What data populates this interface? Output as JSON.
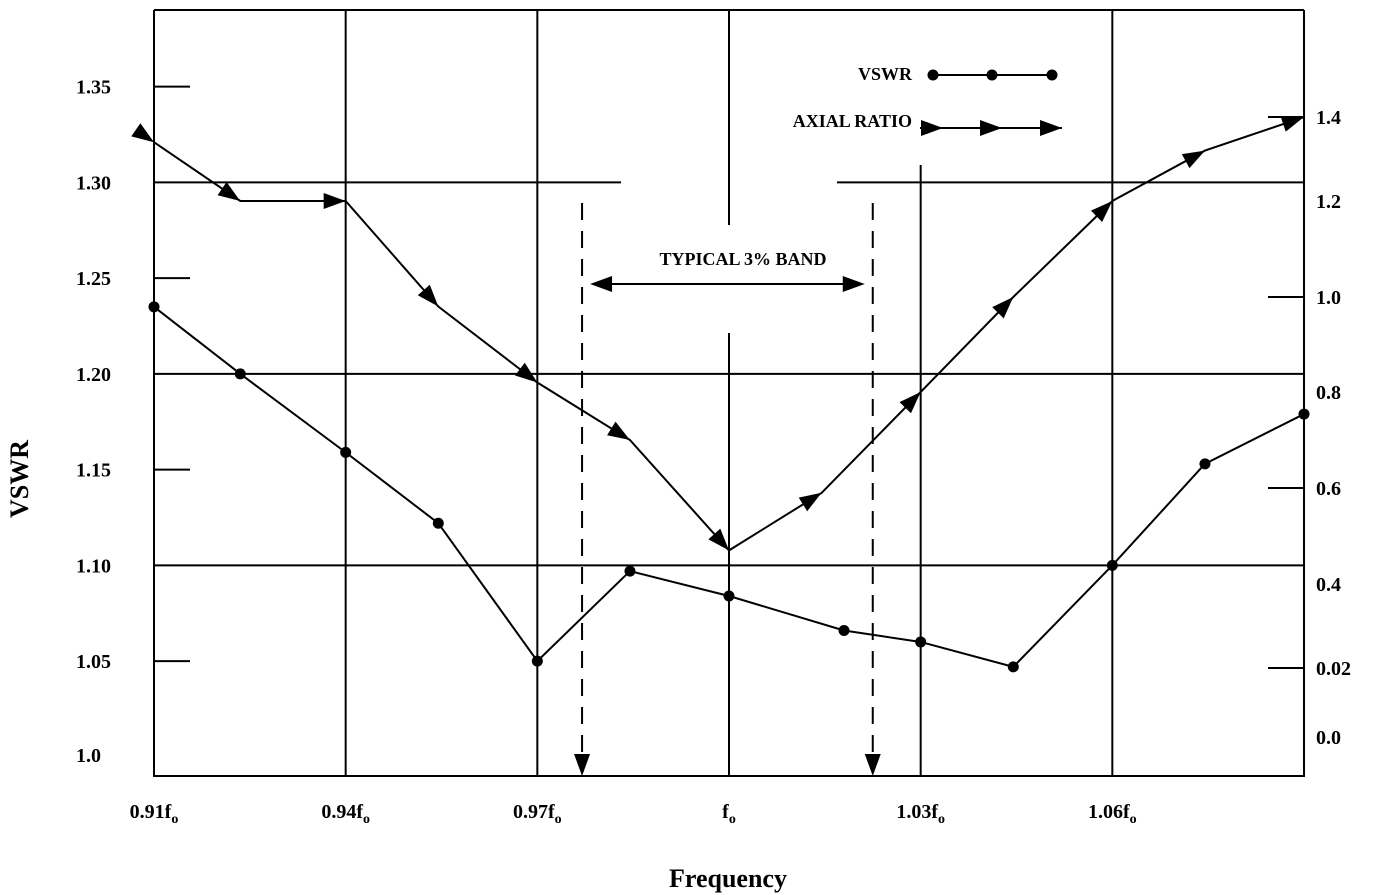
{
  "chart_data": {
    "type": "line",
    "title": "",
    "xlabel": "Frequency",
    "ylabel": "VSWR",
    "x_tick_labels": [
      {
        "base": "0.91f",
        "sub": "o"
      },
      {
        "base": "0.94f",
        "sub": "o"
      },
      {
        "base": "0.97f",
        "sub": "o"
      },
      {
        "base": "f",
        "sub": "o"
      },
      {
        "base": "1.03f",
        "sub": "o"
      },
      {
        "base": "1.06f",
        "sub": "o"
      }
    ],
    "xlim": [
      0.91,
      1.09
    ],
    "ylim": [
      0.99,
      1.39
    ],
    "y_tick_labels": [
      "1.0",
      "1.05",
      "1.10",
      "1.15",
      "1.20",
      "1.25",
      "1.30",
      "1.35"
    ],
    "y2_tick_labels": [
      "0.0",
      "0.02",
      "0.4",
      "0.6",
      "0.8",
      "1.0",
      "1.2",
      "1.4"
    ],
    "grid": true,
    "legend": {
      "placement": "top-right",
      "entries": [
        {
          "label": "VSWR",
          "marker": "circle"
        },
        {
          "label": "AXIAL RATIO",
          "marker": "arrow"
        }
      ]
    },
    "annotation": {
      "text": "TYPICAL  3% BAND",
      "x_start": 0.977,
      "x_end": 1.0225
    },
    "series": [
      {
        "name": "VSWR",
        "marker": "circle",
        "axis": "left",
        "x": [
          0.91,
          0.9235,
          0.94,
          0.9545,
          0.97,
          0.9845,
          1.0,
          1.018,
          1.03,
          1.0445,
          1.06,
          1.0745,
          1.09
        ],
        "y": [
          1.235,
          1.2,
          1.159,
          1.122,
          1.05,
          1.097,
          1.084,
          1.066,
          1.06,
          1.047,
          1.1,
          1.153,
          1.179
        ]
      },
      {
        "name": "AXIAL RATIO",
        "marker": "arrow",
        "axis": "right",
        "x": [
          0.91,
          0.9235,
          0.94,
          0.9545,
          0.97,
          0.9845,
          1.0,
          1.0145,
          1.03,
          1.0445,
          1.06,
          1.0745,
          1.09
        ],
        "y": [
          1.34,
          1.2,
          1.2,
          0.98,
          0.82,
          0.7,
          0.47,
          0.59,
          0.8,
          1.0,
          1.2,
          1.32,
          1.4
        ]
      }
    ]
  }
}
